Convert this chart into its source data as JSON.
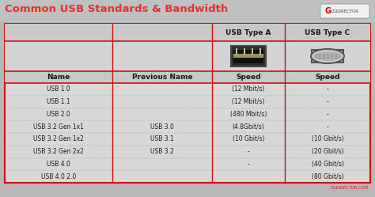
{
  "title": "Common USB Standards & Bandwidth",
  "title_color": "#e03030",
  "bg_color": "#b8b8b8",
  "table_bg": "#d8d8d8",
  "header_bg": "#c0c0c0",
  "border_color": "#cc1111",
  "text_color": "#1a1a1a",
  "footer_text": "CGDIRECTOR.COM",
  "row_headers": [
    "Name",
    "Previous Name",
    "Speed",
    "Speed"
  ],
  "rows": [
    [
      "USB 1.0",
      "",
      "(12 Mbit/s)",
      "-"
    ],
    [
      "USB 1.1",
      "",
      "(12 Mbit/s)",
      "-"
    ],
    [
      "USB 2.0",
      "",
      "(480 Mbit/s)",
      "-"
    ],
    [
      "USB 3.2 Gen 1x1",
      "USB 3.0",
      "(4.8Gbit/s)",
      "-"
    ],
    [
      "USB 3.2 Gen 1x2",
      "USB 3.1",
      "(10 Gbit/s)",
      "(10 Gbit/s)"
    ],
    [
      "USB 3.2 Gen 2x2",
      "USB 3.2",
      "-",
      "(20 Gbit/s)"
    ],
    [
      "USB 4.0",
      "",
      "-",
      "(40 Gbit/s)"
    ],
    [
      "USB 4.0 2.0",
      "",
      "",
      "(80 Gbit/s)"
    ]
  ],
  "font_size_title": 9.5,
  "font_size_table": 5.5,
  "font_size_header": 6.5,
  "figsize": [
    4.74,
    2.49
  ],
  "dpi": 100
}
